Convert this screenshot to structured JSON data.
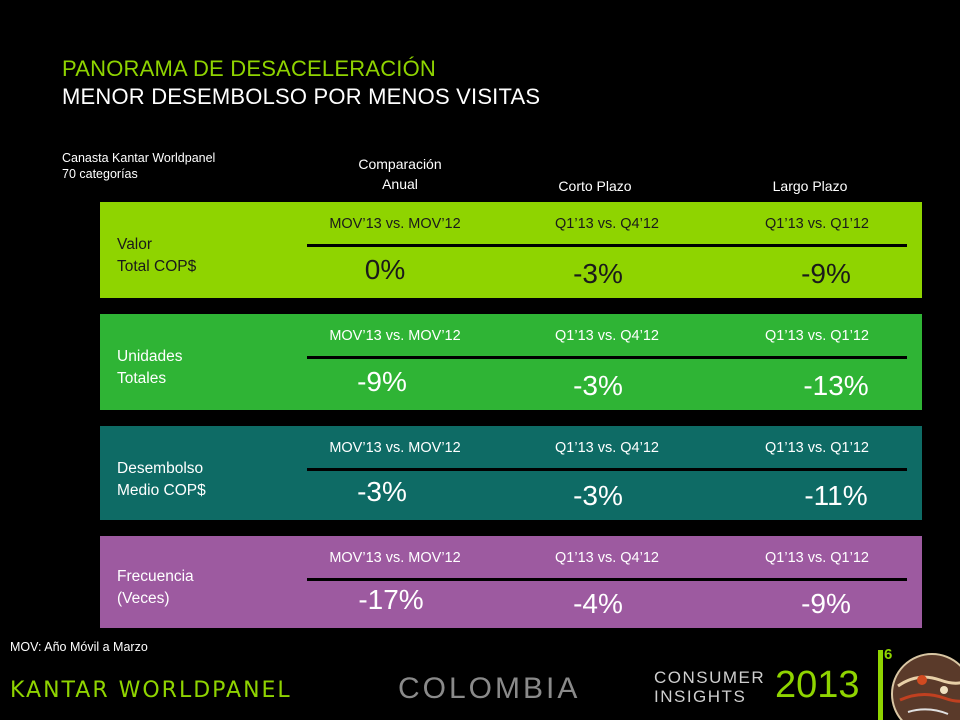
{
  "title": "PANORAMA DE DESACELERACIÓN",
  "subtitle": "MENOR DESEMBOLSO POR MENOS VISITAS",
  "source": {
    "line1": "Canasta Kantar Worldpanel",
    "line2": "70 categorías"
  },
  "columns": {
    "annual_l1": "Comparación",
    "annual_l2": "Anual",
    "short": "Corto Plazo",
    "long": "Largo Plazo"
  },
  "rows": [
    {
      "label1": "Valor",
      "label2": "Total COP$",
      "cmp1": "MOV’13 vs. MOV’12",
      "cmp2": "Q1’13 vs. Q4’12",
      "cmp3": "Q1’13 vs. Q1’12",
      "v1": "0%",
      "v2": "-3%",
      "v3": "-9%",
      "color": "#8fd400",
      "text_color": "#1a1a1a"
    },
    {
      "label1": "Unidades",
      "label2": "Totales",
      "cmp1": "MOV’13 vs. MOV’12",
      "cmp2": "Q1’13 vs. Q4’12",
      "cmp3": "Q1’13 vs. Q1’12",
      "v1": "-9%",
      "v2": "-3%",
      "v3": "-13%",
      "color": "#2fb435",
      "text_color": "#ffffff"
    },
    {
      "label1": "Desembolso",
      "label2": "Medio COP$",
      "cmp1": "MOV’13 vs. MOV’12",
      "cmp2": "Q1’13 vs. Q4’12",
      "cmp3": "Q1’13 vs. Q1’12",
      "v1": "-3%",
      "v2": "-3%",
      "v3": "-11%",
      "color": "#0e6b65",
      "text_color": "#ffffff"
    },
    {
      "label1": "Frecuencia",
      "label2": "(Veces)",
      "cmp1": "MOV’13 vs. MOV’12",
      "cmp2": "Q1’13 vs. Q4’12",
      "cmp3": "Q1’13 vs. Q1’12",
      "v1": "-17%",
      "v2": "-4%",
      "v3": "-9%",
      "color": "#9d5aa0",
      "text_color": "#ffffff"
    }
  ],
  "footnote": "MOV: Año Móvil a Marzo",
  "footer": {
    "brand": "KANTAR WORLDPANEL",
    "country": "COLOMBIA",
    "ci1": "CONSUMER",
    "ci2": "INSIGHTS",
    "year": "2013",
    "page": "6"
  }
}
